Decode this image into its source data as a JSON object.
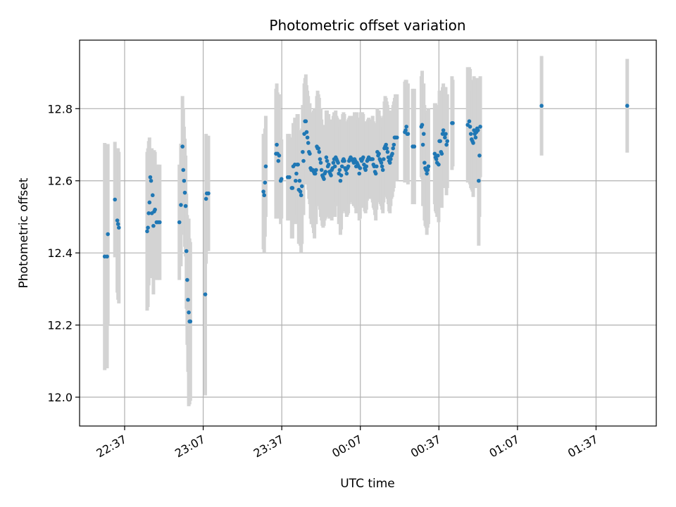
{
  "chart_data": {
    "type": "scatter",
    "title": "Photometric offset variation",
    "xlabel": "UTC time",
    "ylabel": "Photometric offset",
    "x_unit": "UTC time of day (hours after midnight, values past 24 are the next day)",
    "xlim": [
      22.33,
      26.0
    ],
    "ylim": [
      11.92,
      12.99
    ],
    "x_ticks": [
      {
        "value": 22.6167,
        "label": "22:37"
      },
      {
        "value": 23.1167,
        "label": "23:07"
      },
      {
        "value": 23.6167,
        "label": "23:37"
      },
      {
        "value": 24.1167,
        "label": "00:07"
      },
      {
        "value": 24.6167,
        "label": "00:37"
      },
      {
        "value": 25.1167,
        "label": "01:07"
      },
      {
        "value": 25.6167,
        "label": "01:37"
      }
    ],
    "y_ticks": [
      {
        "value": 12.0,
        "label": "12.0"
      },
      {
        "value": 12.2,
        "label": "12.2"
      },
      {
        "value": 12.4,
        "label": "12.4"
      },
      {
        "value": 12.6,
        "label": "12.6"
      },
      {
        "value": 12.8,
        "label": "12.8"
      }
    ],
    "grid": true,
    "legend": "none",
    "point_color": "#1f77b4",
    "errorbar_color": "#d3d3d3",
    "points": [
      [
        22.49,
        12.39,
        0.315
      ],
      [
        22.505,
        12.39,
        0.31
      ],
      [
        22.51,
        12.452,
        0.25
      ],
      [
        22.555,
        12.548,
        0.16
      ],
      [
        22.57,
        12.49,
        0.2
      ],
      [
        22.575,
        12.48,
        0.21
      ],
      [
        22.58,
        12.47,
        0.21
      ],
      [
        22.76,
        12.46,
        0.22
      ],
      [
        22.765,
        12.47,
        0.22
      ],
      [
        22.77,
        12.51,
        0.2
      ],
      [
        22.775,
        12.54,
        0.18
      ],
      [
        22.78,
        12.61,
        0.08
      ],
      [
        22.785,
        12.6,
        0.08
      ],
      [
        22.79,
        12.51,
        0.18
      ],
      [
        22.795,
        12.56,
        0.12
      ],
      [
        22.8,
        12.475,
        0.19
      ],
      [
        22.805,
        12.515,
        0.17
      ],
      [
        22.81,
        12.52,
        0.16
      ],
      [
        22.82,
        12.485,
        0.16
      ],
      [
        22.83,
        12.485,
        0.16
      ],
      [
        22.84,
        12.485,
        0.16
      ],
      [
        22.965,
        12.485,
        0.16
      ],
      [
        22.975,
        12.533,
        0.17
      ],
      [
        22.985,
        12.695,
        0.14
      ],
      [
        22.99,
        12.63,
        0.17
      ],
      [
        22.995,
        12.6,
        0.15
      ],
      [
        23.0,
        12.567,
        0.15
      ],
      [
        23.005,
        12.53,
        0.14
      ],
      [
        23.01,
        12.405,
        0.16
      ],
      [
        23.015,
        12.325,
        0.18
      ],
      [
        23.02,
        12.27,
        0.2
      ],
      [
        23.025,
        12.235,
        0.26
      ],
      [
        23.03,
        12.21,
        0.23
      ],
      [
        23.035,
        12.21,
        0.22
      ],
      [
        23.13,
        12.285,
        0.28
      ],
      [
        23.135,
        12.55,
        0.18
      ],
      [
        23.14,
        12.565,
        0.16
      ],
      [
        23.15,
        12.565,
        0.16
      ],
      [
        23.5,
        12.57,
        0.16
      ],
      [
        23.505,
        12.56,
        0.16
      ],
      [
        23.51,
        12.595,
        0.15
      ],
      [
        23.515,
        12.64,
        0.14
      ],
      [
        23.58,
        12.675,
        0.18
      ],
      [
        23.585,
        12.7,
        0.17
      ],
      [
        23.59,
        12.675,
        0.17
      ],
      [
        23.595,
        12.655,
        0.16
      ],
      [
        23.6,
        12.67,
        0.17
      ],
      [
        23.61,
        12.6,
        0.12
      ],
      [
        23.615,
        12.605,
        0.11
      ],
      [
        23.655,
        12.61,
        0.12
      ],
      [
        23.665,
        12.61,
        0.12
      ],
      [
        23.68,
        12.58,
        0.14
      ],
      [
        23.685,
        12.58,
        0.14
      ],
      [
        23.69,
        12.64,
        0.12
      ],
      [
        23.7,
        12.645,
        0.13
      ],
      [
        23.705,
        12.6,
        0.12
      ],
      [
        23.71,
        12.62,
        0.12
      ],
      [
        23.715,
        12.645,
        0.14
      ],
      [
        23.72,
        12.645,
        0.14
      ],
      [
        23.725,
        12.575,
        0.15
      ],
      [
        23.73,
        12.6,
        0.14
      ],
      [
        23.735,
        12.57,
        0.15
      ],
      [
        23.74,
        12.56,
        0.16
      ],
      [
        23.745,
        12.585,
        0.16
      ],
      [
        23.75,
        12.68,
        0.13
      ],
      [
        23.755,
        12.655,
        0.15
      ],
      [
        23.76,
        12.73,
        0.14
      ],
      [
        23.765,
        12.765,
        0.12
      ],
      [
        23.77,
        12.765,
        0.13
      ],
      [
        23.775,
        12.735,
        0.13
      ],
      [
        23.78,
        12.72,
        0.13
      ],
      [
        23.785,
        12.705,
        0.13
      ],
      [
        23.79,
        12.68,
        0.13
      ],
      [
        23.795,
        12.675,
        0.14
      ],
      [
        23.8,
        12.635,
        0.14
      ],
      [
        23.805,
        12.63,
        0.15
      ],
      [
        23.81,
        12.63,
        0.15
      ],
      [
        23.815,
        12.63,
        0.16
      ],
      [
        23.82,
        12.625,
        0.17
      ],
      [
        23.825,
        12.62,
        0.18
      ],
      [
        23.83,
        12.62,
        0.14
      ],
      [
        23.835,
        12.63,
        0.15
      ],
      [
        23.84,
        12.695,
        0.14
      ],
      [
        23.845,
        12.69,
        0.16
      ],
      [
        23.85,
        12.69,
        0.15
      ],
      [
        23.855,
        12.68,
        0.15
      ],
      [
        23.86,
        12.66,
        0.14
      ],
      [
        23.865,
        12.65,
        0.15
      ],
      [
        23.87,
        12.63,
        0.14
      ],
      [
        23.875,
        12.615,
        0.14
      ],
      [
        23.88,
        12.61,
        0.14
      ],
      [
        23.885,
        12.605,
        0.13
      ],
      [
        23.89,
        12.62,
        0.13
      ],
      [
        23.895,
        12.625,
        0.13
      ],
      [
        23.9,
        12.665,
        0.13
      ],
      [
        23.905,
        12.655,
        0.14
      ],
      [
        23.91,
        12.64,
        0.14
      ],
      [
        23.915,
        12.645,
        0.14
      ],
      [
        23.92,
        12.625,
        0.13
      ],
      [
        23.925,
        12.62,
        0.12
      ],
      [
        23.93,
        12.615,
        0.12
      ],
      [
        23.935,
        12.63,
        0.14
      ],
      [
        23.94,
        12.635,
        0.13
      ],
      [
        23.945,
        12.65,
        0.13
      ],
      [
        23.95,
        12.66,
        0.13
      ],
      [
        23.955,
        12.64,
        0.14
      ],
      [
        23.96,
        12.665,
        0.13
      ],
      [
        23.965,
        12.66,
        0.12
      ],
      [
        23.97,
        12.655,
        0.12
      ],
      [
        23.975,
        12.65,
        0.12
      ],
      [
        23.98,
        12.62,
        0.14
      ],
      [
        23.985,
        12.63,
        0.14
      ],
      [
        23.99,
        12.6,
        0.15
      ],
      [
        23.995,
        12.615,
        0.15
      ],
      [
        24.0,
        12.64,
        0.13
      ],
      [
        24.005,
        12.655,
        0.13
      ],
      [
        24.01,
        12.66,
        0.13
      ],
      [
        24.015,
        12.655,
        0.13
      ],
      [
        24.02,
        12.635,
        0.12
      ],
      [
        24.025,
        12.63,
        0.12
      ],
      [
        24.03,
        12.62,
        0.12
      ],
      [
        24.035,
        12.635,
        0.13
      ],
      [
        24.04,
        12.64,
        0.13
      ],
      [
        24.045,
        12.655,
        0.12
      ],
      [
        24.05,
        12.66,
        0.12
      ],
      [
        24.055,
        12.665,
        0.11
      ],
      [
        24.06,
        12.66,
        0.12
      ],
      [
        24.065,
        12.66,
        0.12
      ],
      [
        24.07,
        12.655,
        0.12
      ],
      [
        24.075,
        12.65,
        0.12
      ],
      [
        24.08,
        12.66,
        0.13
      ],
      [
        24.085,
        12.655,
        0.13
      ],
      [
        24.09,
        12.64,
        0.13
      ],
      [
        24.095,
        12.65,
        0.14
      ],
      [
        24.1,
        12.645,
        0.13
      ],
      [
        24.105,
        12.64,
        0.13
      ],
      [
        24.11,
        12.62,
        0.13
      ],
      [
        24.115,
        12.635,
        0.14
      ],
      [
        24.12,
        12.66,
        0.13
      ],
      [
        24.125,
        12.655,
        0.13
      ],
      [
        24.13,
        12.66,
        0.13
      ],
      [
        24.135,
        12.665,
        0.12
      ],
      [
        24.14,
        12.645,
        0.12
      ],
      [
        24.145,
        12.635,
        0.12
      ],
      [
        24.15,
        12.63,
        0.12
      ],
      [
        24.155,
        12.64,
        0.12
      ],
      [
        24.16,
        12.655,
        0.11
      ],
      [
        24.165,
        12.66,
        0.11
      ],
      [
        24.17,
        12.665,
        0.11
      ],
      [
        24.175,
        12.66,
        0.11
      ],
      [
        24.18,
        12.66,
        0.11
      ],
      [
        24.185,
        12.66,
        0.11
      ],
      [
        24.19,
        12.66,
        0.11
      ],
      [
        24.195,
        12.66,
        0.12
      ],
      [
        24.2,
        12.645,
        0.12
      ],
      [
        24.205,
        12.64,
        0.12
      ],
      [
        24.21,
        12.625,
        0.12
      ],
      [
        24.215,
        12.62,
        0.13
      ],
      [
        24.22,
        12.64,
        0.12
      ],
      [
        24.225,
        12.68,
        0.12
      ],
      [
        24.23,
        12.67,
        0.12
      ],
      [
        24.235,
        12.675,
        0.12
      ],
      [
        24.24,
        12.66,
        0.12
      ],
      [
        24.245,
        12.655,
        0.12
      ],
      [
        24.25,
        12.65,
        0.12
      ],
      [
        24.255,
        12.64,
        0.12
      ],
      [
        24.26,
        12.63,
        0.12
      ],
      [
        24.265,
        12.66,
        0.12
      ],
      [
        24.27,
        12.69,
        0.13
      ],
      [
        24.275,
        12.695,
        0.14
      ],
      [
        24.28,
        12.7,
        0.13
      ],
      [
        24.285,
        12.69,
        0.13
      ],
      [
        24.29,
        12.68,
        0.13
      ],
      [
        24.295,
        12.665,
        0.13
      ],
      [
        24.3,
        12.655,
        0.14
      ],
      [
        24.305,
        12.65,
        0.14
      ],
      [
        24.31,
        12.66,
        0.13
      ],
      [
        24.315,
        12.67,
        0.12
      ],
      [
        24.32,
        12.675,
        0.12
      ],
      [
        24.325,
        12.69,
        0.12
      ],
      [
        24.33,
        12.7,
        0.12
      ],
      [
        24.335,
        12.72,
        0.11
      ],
      [
        24.34,
        12.72,
        0.12
      ],
      [
        24.35,
        12.72,
        0.12
      ],
      [
        24.4,
        12.735,
        0.14
      ],
      [
        24.405,
        12.74,
        0.14
      ],
      [
        24.41,
        12.75,
        0.13
      ],
      [
        24.415,
        12.73,
        0.13
      ],
      [
        24.42,
        12.73,
        0.14
      ],
      [
        24.45,
        12.695,
        0.16
      ],
      [
        24.46,
        12.695,
        0.16
      ],
      [
        24.505,
        12.75,
        0.14
      ],
      [
        24.51,
        12.755,
        0.15
      ],
      [
        24.515,
        12.7,
        0.17
      ],
      [
        24.52,
        12.73,
        0.14
      ],
      [
        24.525,
        12.65,
        0.16
      ],
      [
        24.53,
        12.635,
        0.16
      ],
      [
        24.535,
        12.63,
        0.16
      ],
      [
        24.54,
        12.62,
        0.17
      ],
      [
        24.545,
        12.63,
        0.16
      ],
      [
        24.55,
        12.64,
        0.16
      ],
      [
        24.59,
        12.675,
        0.14
      ],
      [
        24.595,
        12.665,
        0.15
      ],
      [
        24.6,
        12.66,
        0.15
      ],
      [
        24.605,
        12.65,
        0.15
      ],
      [
        24.61,
        12.67,
        0.14
      ],
      [
        24.615,
        12.645,
        0.16
      ],
      [
        24.62,
        12.71,
        0.14
      ],
      [
        24.625,
        12.71,
        0.14
      ],
      [
        24.63,
        12.68,
        0.15
      ],
      [
        24.635,
        12.675,
        0.15
      ],
      [
        24.64,
        12.73,
        0.13
      ],
      [
        24.645,
        12.74,
        0.13
      ],
      [
        24.65,
        12.73,
        0.13
      ],
      [
        24.655,
        12.72,
        0.14
      ],
      [
        24.66,
        12.73,
        0.13
      ],
      [
        24.665,
        12.7,
        0.14
      ],
      [
        24.67,
        12.71,
        0.13
      ],
      [
        24.7,
        12.76,
        0.13
      ],
      [
        24.705,
        12.76,
        0.12
      ],
      [
        24.8,
        12.755,
        0.16
      ],
      [
        24.81,
        12.765,
        0.15
      ],
      [
        24.815,
        12.75,
        0.16
      ],
      [
        24.82,
        12.73,
        0.15
      ],
      [
        24.825,
        12.715,
        0.14
      ],
      [
        24.83,
        12.71,
        0.14
      ],
      [
        24.835,
        12.705,
        0.15
      ],
      [
        24.84,
        12.74,
        0.15
      ],
      [
        24.845,
        12.73,
        0.14
      ],
      [
        24.85,
        12.72,
        0.14
      ],
      [
        24.855,
        12.735,
        0.14
      ],
      [
        24.86,
        12.745,
        0.14
      ],
      [
        24.865,
        12.74,
        0.14
      ],
      [
        24.87,
        12.6,
        0.18
      ],
      [
        24.875,
        12.67,
        0.17
      ],
      [
        24.88,
        12.75,
        0.14
      ],
      [
        25.27,
        12.808,
        0.138
      ],
      [
        25.815,
        12.808,
        0.13
      ]
    ]
  }
}
